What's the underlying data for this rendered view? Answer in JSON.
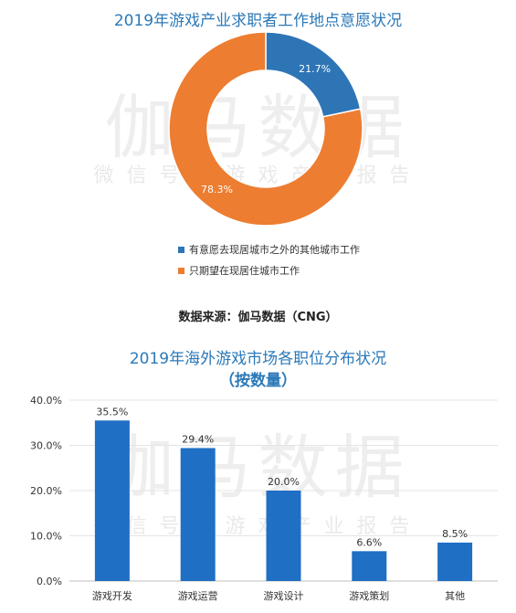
{
  "watermark": {
    "main": "伽马数据",
    "sub": "微信号：游戏产业报告"
  },
  "chart1": {
    "title": "2019年游戏产业求职者工作地点意愿状况",
    "chart_data": {
      "type": "pie",
      "donut": true,
      "title": "2019年游戏产业求职者工作地点意愿状况",
      "slices": [
        {
          "label": "有意愿去现居城市之外的其他城市工作",
          "value": 21.7,
          "display": "21.7%",
          "color": "#2e75b6"
        },
        {
          "label": "只期望在现居住城市工作",
          "value": 78.3,
          "display": "78.3%",
          "color": "#ed7d31"
        }
      ],
      "legend_position": "bottom"
    }
  },
  "source": "数据来源：伽马数据（CNG）",
  "chart2": {
    "title": "2019年海外游戏市场各职位分布状况",
    "subtitle": "（按数量）",
    "chart_data": {
      "type": "bar",
      "title": "2019年海外游戏市场各职位分布状况",
      "subtitle": "（按数量）",
      "categories": [
        "游戏开发",
        "游戏运营",
        "游戏设计",
        "游戏策划",
        "其他"
      ],
      "values": [
        35.5,
        29.4,
        20.0,
        6.6,
        8.5
      ],
      "data_labels": [
        "35.5%",
        "29.4%",
        "20.0%",
        "6.6%",
        "8.5%"
      ],
      "yticks": [
        "0.0%",
        "10.0%",
        "20.0%",
        "30.0%",
        "40.0%"
      ],
      "ylim": [
        0,
        40
      ],
      "grid": true,
      "color": "#1f6fc5"
    }
  }
}
